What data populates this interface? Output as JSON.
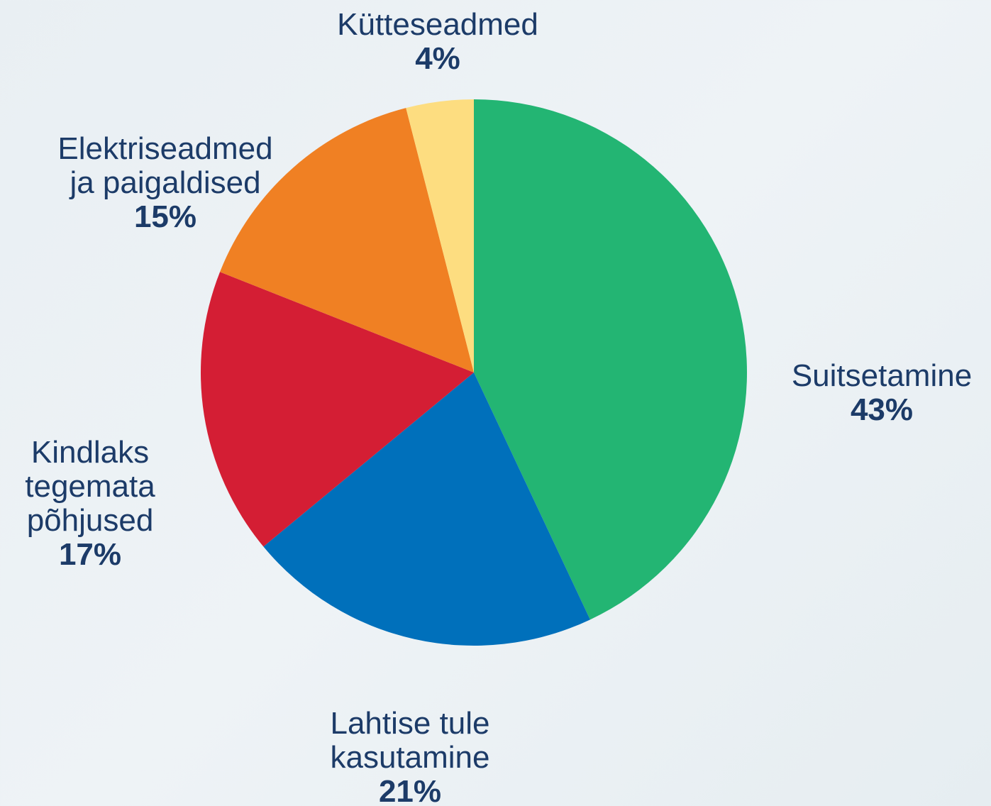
{
  "chart_data": {
    "type": "pie",
    "categories": [
      "Suitsetamine",
      "Lahtise tule\nkasutamine",
      "Kindlaks\ntegemata\npõhjused",
      "Elektriseadmed\nja paigaldised",
      "Kütteseadmed"
    ],
    "values": [
      43,
      21,
      17,
      15,
      4
    ],
    "value_labels": [
      "43%",
      "21%",
      "17%",
      "15%",
      "4%"
    ],
    "colors": [
      "#23b573",
      "#0070bb",
      "#d41e34",
      "#f08023",
      "#fddd80"
    ]
  }
}
